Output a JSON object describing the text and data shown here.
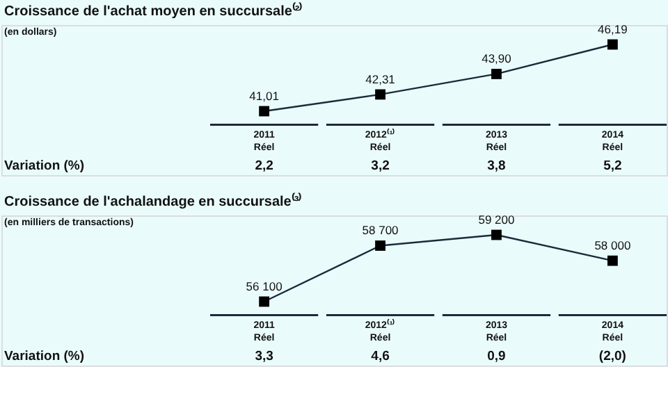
{
  "chart_data": [
    {
      "type": "line",
      "title": "Croissance de l'achat moyen en succursale⁽²⁾",
      "ylabel": "(en dollars)",
      "categories": [
        "2011\nRéel",
        "2012⁽¹⁾\nRéel",
        "2013\nRéel",
        "2014\nRéel"
      ],
      "series": [
        {
          "color": "#1c2b3a",
          "values": [
            41.01,
            42.31,
            43.9,
            46.19
          ],
          "value_labels": [
            "41,01",
            "42,31",
            "43,90",
            "46,19"
          ]
        }
      ],
      "marker": "square",
      "line_style": "solid",
      "annotations": [
        "Variation (%)",
        "2,2",
        "3,2",
        "3,8",
        "5,2"
      ]
    },
    {
      "type": "line",
      "title": "Croissance de l'achalandage en succursale⁽³⁾",
      "ylabel": "(en milliers de transactions)",
      "categories": [
        "2011\nRéel",
        "2012⁽¹⁾\nRéel",
        "2013\nRéel",
        "2014\nRéel"
      ],
      "series": [
        {
          "color": "#1c2b3a",
          "values": [
            56100,
            58700,
            59200,
            58000
          ],
          "value_labels": [
            "56 100",
            "58 700",
            "59 200",
            "58 000"
          ]
        }
      ],
      "marker": "square",
      "line_style": "solid",
      "annotations": [
        "Variation (%)",
        "3,3",
        "4,6",
        "0,9",
        "(2,0)"
      ]
    }
  ]
}
